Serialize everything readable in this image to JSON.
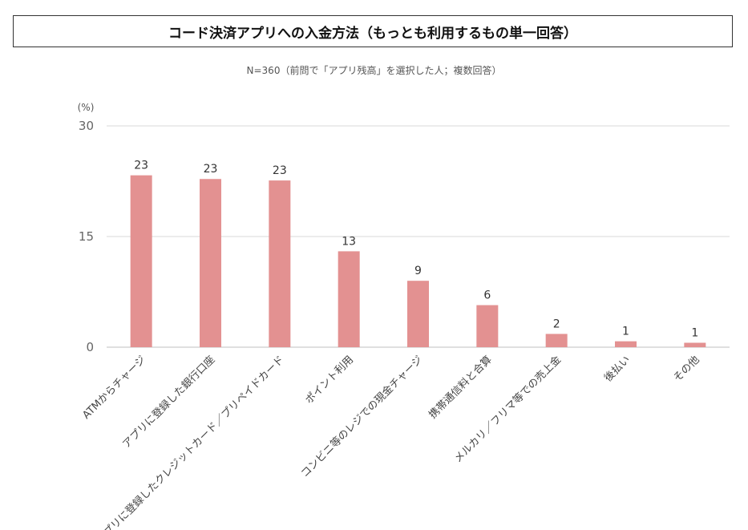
{
  "title": "コード決済アプリへの入金方法（もっとも利用するもの単一回答）",
  "subtitle": "N=360（前問で「アプリ残高」を選択した人；複数回答）",
  "chart_data": {
    "type": "bar",
    "title": "コード決済アプリへの入金方法（もっとも利用するもの単一回答）",
    "subtitle": "N=360（前問で「アプリ残高」を選択した人；複数回答）",
    "ylabel": "(%)",
    "ylim": [
      0,
      30
    ],
    "yticks": [
      0,
      15,
      30
    ],
    "grid": true,
    "bar_color": "#e39191",
    "categories": [
      "ATMからチャージ",
      "アプリに登録した銀行口座",
      "アプリに登録したクレジットカード／プリペイドカード",
      "ポイント利用",
      "コンビニ等のレジでの現金チャージ",
      "携帯通信料と合算",
      "メルカリ／フリマ等での売上金",
      "後払い",
      "その他"
    ],
    "values": [
      23.3,
      22.8,
      22.6,
      13.0,
      9.0,
      5.7,
      1.8,
      0.8,
      0.6
    ],
    "data_labels": [
      "23",
      "23",
      "23",
      "13",
      "9",
      "6",
      "2",
      "1",
      "1"
    ]
  }
}
